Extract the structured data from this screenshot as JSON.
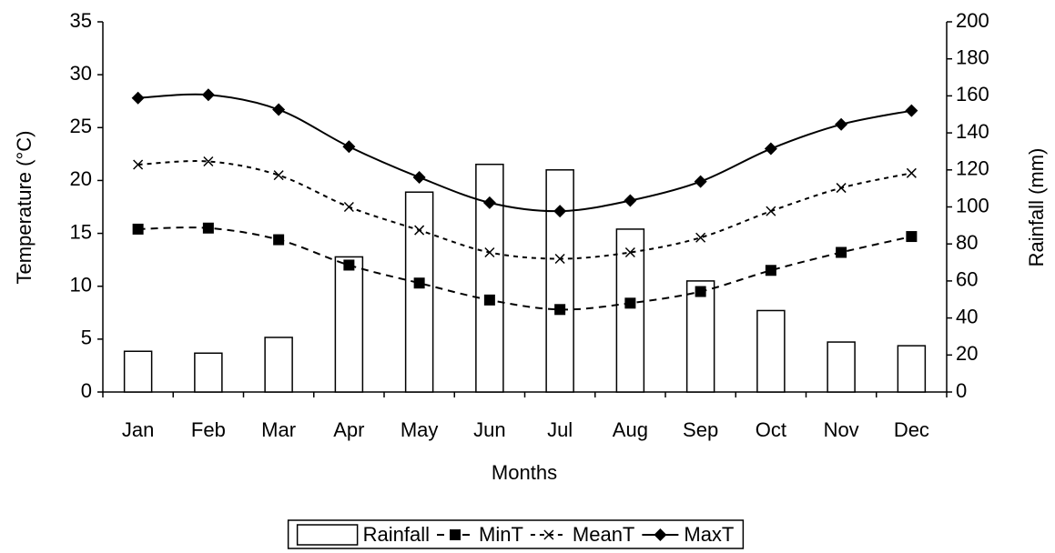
{
  "chart_data": {
    "type": "combo",
    "x_label": "Months",
    "y_label": "Temperature (°C)",
    "y2_label": "Rainfall (mm)",
    "categories": [
      "Jan",
      "Feb",
      "Mar",
      "Apr",
      "May",
      "Jun",
      "Jul",
      "Aug",
      "Sep",
      "Oct",
      "Nov",
      "Dec"
    ],
    "ylim": [
      0,
      35
    ],
    "yticks": [
      0,
      5,
      10,
      15,
      20,
      25,
      30,
      35
    ],
    "y2lim": [
      0,
      200
    ],
    "y2ticks": [
      0,
      20,
      40,
      60,
      80,
      100,
      120,
      140,
      160,
      180,
      200
    ],
    "grid": false,
    "legend": "bottom",
    "series": [
      {
        "name": "Rainfall",
        "type": "bar",
        "axis": "y2",
        "color": "#000000",
        "values": [
          22,
          21,
          29.5,
          73,
          108,
          123,
          120,
          88,
          60,
          44,
          27,
          25
        ]
      },
      {
        "name": "MinT",
        "type": "line",
        "color": "#000000",
        "marker": "square",
        "dash": "dashed",
        "values": [
          15.4,
          15.5,
          14.4,
          12.0,
          10.3,
          8.7,
          7.8,
          8.4,
          9.5,
          11.5,
          13.2,
          14.7
        ]
      },
      {
        "name": "MeanT",
        "type": "line",
        "color": "#000000",
        "marker": "x",
        "dash": "dotted",
        "values": [
          21.5,
          21.8,
          20.5,
          17.5,
          15.3,
          13.2,
          12.6,
          13.2,
          14.6,
          17.1,
          19.3,
          20.7
        ]
      },
      {
        "name": "MaxT",
        "type": "line",
        "color": "#000000",
        "marker": "diamond",
        "dash": "solid",
        "values": [
          27.8,
          28.1,
          26.7,
          23.2,
          20.3,
          17.9,
          17.1,
          18.1,
          19.9,
          23.0,
          25.3,
          26.6
        ]
      }
    ]
  }
}
